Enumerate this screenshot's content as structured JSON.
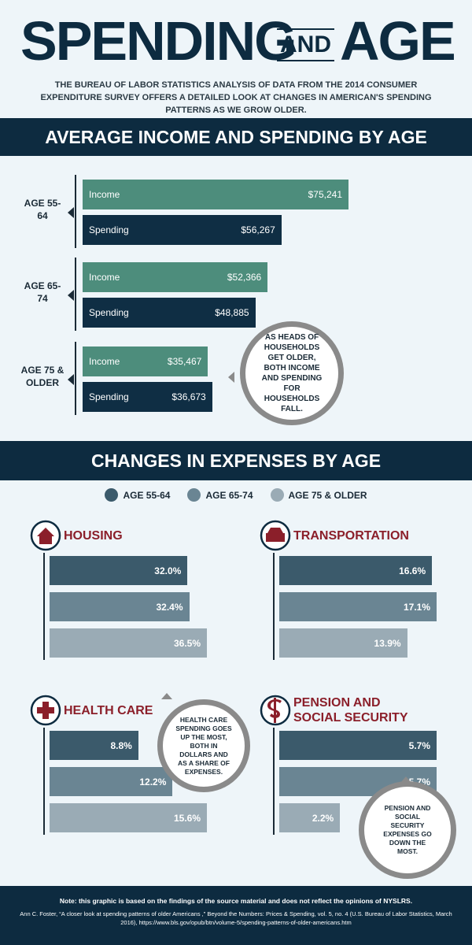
{
  "header": {
    "title_1": "SPENDING",
    "title_2": "AND",
    "title_3": "AGE",
    "intro": "THE BUREAU OF LABOR STATISTICS ANALYSIS OF DATA FROM THE 2014 CONSUMER EXPENDITURE SURVEY OFFERS A DETAILED LOOK AT CHANGES IN AMERICAN'S SPENDING PATTERNS AS WE GROW OLDER."
  },
  "chart_data": [
    {
      "type": "bar",
      "title": "AVERAGE INCOME AND SPENDING BY AGE",
      "categories": [
        "AGE 55-64",
        "AGE 65-74",
        "AGE 75 & OLDER"
      ],
      "series": [
        {
          "name": "Income",
          "color": "#4d8d7c",
          "values": [
            75241,
            52366,
            35467
          ],
          "value_labels": [
            "$75,241",
            "$52,366",
            "$35,467"
          ]
        },
        {
          "name": "Spending",
          "color": "#0f2e44",
          "values": [
            56267,
            48885,
            36673
          ],
          "value_labels": [
            "$56,267",
            "$48,885",
            "$36,673"
          ]
        }
      ],
      "annotation": "AS HEADS OF HOUSEHOLDS GET OLDER, BOTH INCOME AND SPENDING FOR HOUSEHOLDS FALL."
    },
    {
      "type": "bar",
      "title": "CHANGES IN EXPENSES BY AGE",
      "categories": [
        "HOUSING",
        "TRANSPORTATION",
        "HEALTH CARE",
        "PENSION AND SOCIAL SECURITY"
      ],
      "series": [
        {
          "name": "AGE 55-64",
          "color": "#3b5a6b",
          "values": [
            32.0,
            16.6,
            8.8,
            5.7
          ],
          "value_labels": [
            "32.0%",
            "16.6%",
            "8.8%",
            "5.7%"
          ]
        },
        {
          "name": "AGE 65-74",
          "color": "#6a8593",
          "values": [
            32.4,
            17.1,
            12.2,
            5.7
          ],
          "value_labels": [
            "32.4%",
            "17.1%",
            "12.2%",
            "5.7%"
          ]
        },
        {
          "name": "AGE 75 & OLDER",
          "color": "#9aabb5",
          "values": [
            36.5,
            13.9,
            15.6,
            2.2
          ],
          "value_labels": [
            "36.5%",
            "13.9%",
            "15.6%",
            "2.2%"
          ]
        }
      ],
      "annotations": [
        "HEALTH CARE SPENDING GOES UP THE MOST, BOTH IN DOLLARS AND AS A SHARE OF EXPENSES.",
        "PENSION AND SOCIAL SECURITY EXPENSES GO DOWN THE MOST."
      ]
    }
  ],
  "footer": {
    "note": "Note: this graphic is based on the findings of the source material and does not reflect the opinions of NYSLRS.",
    "citation": "Ann C. Foster, “A closer look at spending patterns of older Americans ,” Beyond the Numbers: Prices & Spending, vol. 5, no. 4 (U.S. Bureau of Labor Statistics, March 2016), https://www.bls.gov/opub/btn/volume-5/spending-patterns-of-older-americans.htm"
  }
}
